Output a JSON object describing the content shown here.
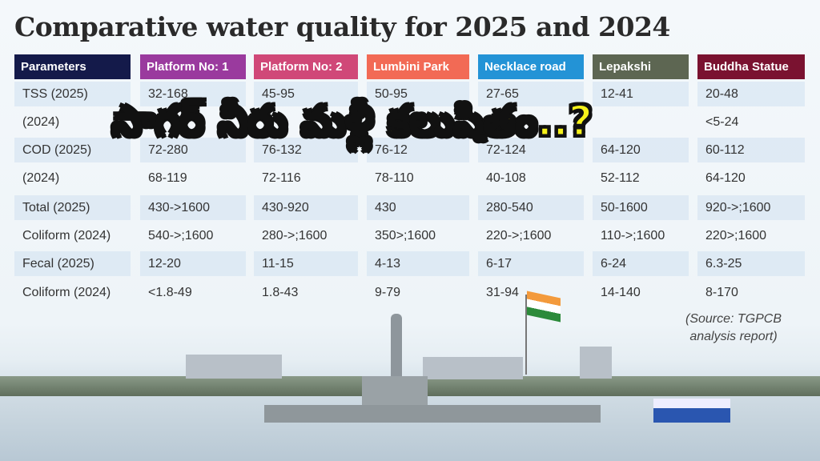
{
  "title": "Comparative water quality for 2025 and 2024",
  "overlay_text": "సాగర్ నీరు మళ్లీ కలుషితం..?",
  "source": [
    "(Source: TGPCB",
    "analysis report)"
  ],
  "columns": [
    {
      "label": "Parameters",
      "color": "#141a4a"
    },
    {
      "label": "Platform No: 1",
      "color": "#9a3a9e"
    },
    {
      "label": "Platform No: 2",
      "color": "#d04878"
    },
    {
      "label": "Lumbini Park",
      "color": "#f26a55"
    },
    {
      "label": "Necklace road",
      "color": "#2393d6"
    },
    {
      "label": "Lepakshi",
      "color": "#5d6652"
    },
    {
      "label": "Buddha Statue",
      "color": "#7a1230"
    }
  ],
  "rows": [
    [
      "TSS (2025)",
      "32-168",
      "45-95",
      "50-95",
      "27-65",
      "12-41",
      "20-48"
    ],
    [
      "(2024)",
      "",
      "",
      "",
      "",
      "",
      "<5-24"
    ],
    [
      "COD (2025)",
      "72-280",
      "76-132",
      "76-12",
      "72-124",
      "64-120",
      "60-112"
    ],
    [
      "(2024)",
      "68-119",
      "72-116",
      "78-110",
      "40-108",
      "52-112",
      "64-120"
    ],
    [
      "Total (2025)",
      "430->1600",
      "430-920",
      "430",
      "280-540",
      "50-1600",
      "920->;1600"
    ],
    [
      "Coliform (2024)",
      "540->;1600",
      "280->;1600",
      "350>;1600",
      "220->;1600",
      "110->;1600",
      "220>;1600"
    ],
    [
      "Fecal (2025)",
      "12-20",
      "11-15",
      "4-13",
      "6-17",
      "6-24",
      "6.3-25"
    ],
    [
      "Coliform (2024)",
      "<1.8-49",
      "1.8-43",
      "9-79",
      "31-94",
      "14-140",
      "8-170"
    ]
  ]
}
